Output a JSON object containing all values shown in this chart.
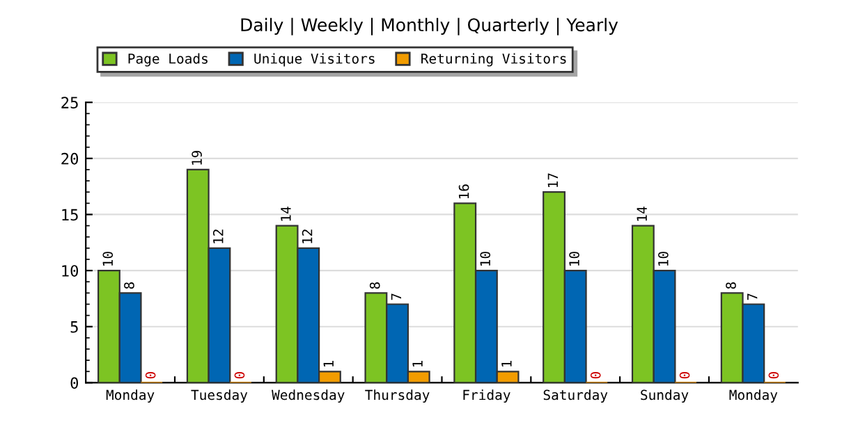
{
  "chart_data": {
    "type": "bar",
    "title": "Daily | Weekly | Monthly | Quarterly | Yearly",
    "categories": [
      "Monday",
      "Tuesday",
      "Wednesday",
      "Thursday",
      "Friday",
      "Saturday",
      "Sunday",
      "Monday"
    ],
    "series": [
      {
        "name": "Page Loads",
        "color": "#7dc423",
        "values": [
          10,
          19,
          14,
          8,
          16,
          17,
          14,
          8
        ]
      },
      {
        "name": "Unique Visitors",
        "color": "#0066b3",
        "values": [
          8,
          12,
          12,
          7,
          10,
          10,
          10,
          7
        ]
      },
      {
        "name": "Returning Visitors",
        "color": "#f29c00",
        "values": [
          0,
          0,
          1,
          1,
          1,
          0,
          0,
          0
        ]
      }
    ],
    "ylim": [
      0,
      25
    ],
    "yticks": [
      0,
      5,
      10,
      15,
      20,
      25
    ],
    "grid": "y",
    "legend": "top",
    "data_labels": true
  }
}
